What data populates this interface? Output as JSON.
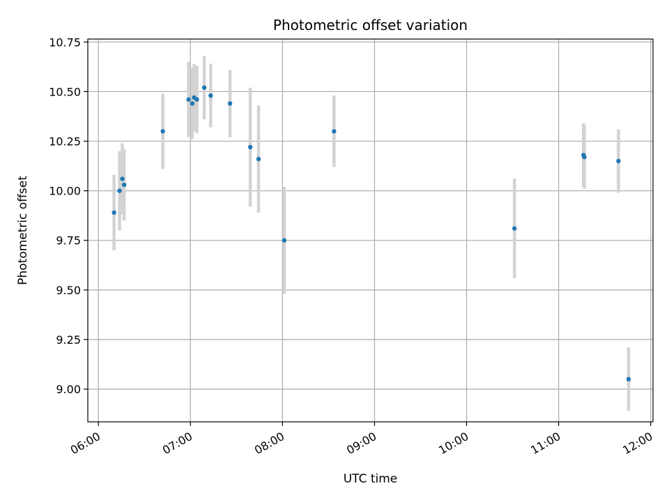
{
  "chart_data": {
    "type": "scatter",
    "title": "Photometric offset variation",
    "xlabel": "UTC time",
    "ylabel": "Photometric offset",
    "xlim": [
      5.885,
      12.025
    ],
    "ylim": [
      8.835,
      10.765
    ],
    "grid": true,
    "colors": {
      "point": "#1f77b4",
      "errorbar": "#d3d3d3",
      "grid": "#b0b0b0"
    },
    "x_ticks": [
      {
        "value": 6,
        "label": "06:00"
      },
      {
        "value": 7,
        "label": "07:00"
      },
      {
        "value": 8,
        "label": "08:00"
      },
      {
        "value": 9,
        "label": "09:00"
      },
      {
        "value": 10,
        "label": "10:00"
      },
      {
        "value": 11,
        "label": "11:00"
      },
      {
        "value": 12,
        "label": "12:00"
      }
    ],
    "y_ticks": [
      {
        "value": 9.0,
        "label": "9.00"
      },
      {
        "value": 9.25,
        "label": "9.25"
      },
      {
        "value": 9.5,
        "label": "9.50"
      },
      {
        "value": 9.75,
        "label": "9.75"
      },
      {
        "value": 10.0,
        "label": "10.00"
      },
      {
        "value": 10.25,
        "label": "10.25"
      },
      {
        "value": 10.5,
        "label": "10.50"
      },
      {
        "value": 10.75,
        "label": "10.75"
      }
    ],
    "points": [
      {
        "x": 6.17,
        "y": 9.89,
        "err": 0.19
      },
      {
        "x": 6.23,
        "y": 10.0,
        "err": 0.2
      },
      {
        "x": 6.26,
        "y": 10.06,
        "err": 0.18
      },
      {
        "x": 6.28,
        "y": 10.03,
        "err": 0.18
      },
      {
        "x": 6.7,
        "y": 10.3,
        "err": 0.19
      },
      {
        "x": 6.98,
        "y": 10.46,
        "err": 0.19
      },
      {
        "x": 7.02,
        "y": 10.44,
        "err": 0.18
      },
      {
        "x": 7.04,
        "y": 10.47,
        "err": 0.17
      },
      {
        "x": 7.07,
        "y": 10.46,
        "err": 0.17
      },
      {
        "x": 7.15,
        "y": 10.52,
        "err": 0.16
      },
      {
        "x": 7.22,
        "y": 10.48,
        "err": 0.16
      },
      {
        "x": 7.43,
        "y": 10.44,
        "err": 0.17
      },
      {
        "x": 7.65,
        "y": 10.22,
        "err": 0.3
      },
      {
        "x": 7.74,
        "y": 10.16,
        "err": 0.27
      },
      {
        "x": 8.02,
        "y": 9.75,
        "err": 0.27
      },
      {
        "x": 8.56,
        "y": 10.3,
        "err": 0.18
      },
      {
        "x": 10.52,
        "y": 9.81,
        "err": 0.25
      },
      {
        "x": 11.27,
        "y": 10.18,
        "err": 0.16
      },
      {
        "x": 11.28,
        "y": 10.17,
        "err": 0.16
      },
      {
        "x": 11.65,
        "y": 10.15,
        "err": 0.16
      },
      {
        "x": 11.76,
        "y": 9.05,
        "err": 0.16
      }
    ]
  }
}
